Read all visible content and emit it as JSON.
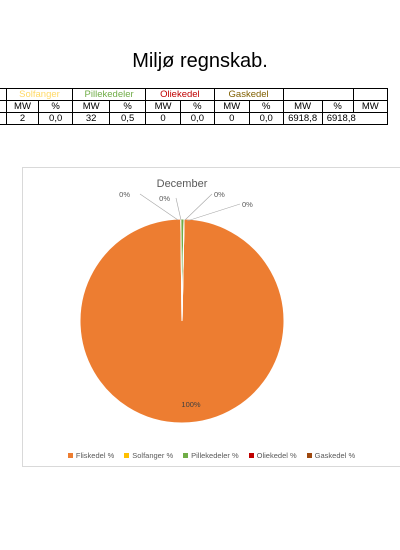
{
  "page": {
    "title": "Miljø regnskab."
  },
  "table": {
    "groups": [
      {
        "label": "",
        "color": "#000000"
      },
      {
        "label": "Solfanger",
        "color": "#ffd966"
      },
      {
        "label": "Pillekedeler",
        "color": "#70ad47"
      },
      {
        "label": "Oliekedel",
        "color": "#c00000"
      },
      {
        "label": "Gaskedel",
        "color": "#806000"
      },
      {
        "label": "",
        "color": "#000000"
      }
    ],
    "subheaders": [
      "MW",
      "%",
      "MW",
      "%",
      "MW",
      "%",
      "MW",
      "%",
      "MW",
      "%",
      "MW"
    ],
    "values": [
      "",
      "2",
      "0,0",
      "32",
      "0,5",
      "0",
      "0,0",
      "0",
      "0,0",
      "6918,8"
    ]
  },
  "chart_data": {
    "type": "pie",
    "title": "December",
    "categories": [
      "Fliskedel %",
      "Solfanger %",
      "Pillekedeler %",
      "Oliekedel %",
      "Gaskedel %"
    ],
    "values": [
      99.5,
      0.0,
      0.5,
      0.0,
      0.0
    ],
    "data_labels": [
      "100%",
      "0%",
      "0%",
      "0%",
      "0%"
    ],
    "colors": [
      "#ed7d31",
      "#ffc000",
      "#70ad47",
      "#c00000",
      "#9e480e"
    ],
    "legend_position": "bottom"
  }
}
